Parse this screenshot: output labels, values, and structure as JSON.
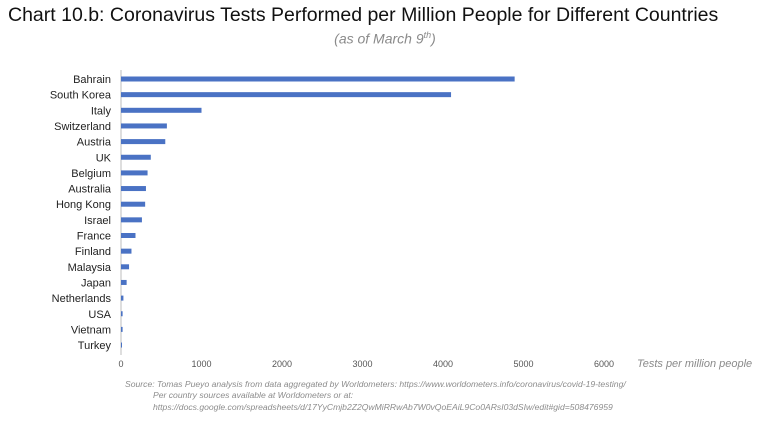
{
  "title": "Chart 10.b: Coronavirus Tests Performed per Million People for Different Countries",
  "subtitle_main": "(as of March 9",
  "subtitle_sup": "th",
  "subtitle_end": ")",
  "source": {
    "line1": "Source: Tomas Pueyo analysis from data aggregated by Worldometers: https://www.worldometers.info/coronavirus/covid-19-testing/",
    "line2": "Per country sources available at Worldometers or at:",
    "line3": "https://docs.google.com/spreadsheets/d/17YyCmjb2Z2QwMiRRwAb7W0vQoEAiL9Co0ARsI03dSIw/edit#gid=508476959"
  },
  "colors": {
    "bar": "#4a72c4",
    "grid": "#e2e2e2",
    "axis": "#bdbdbd"
  },
  "chart_data": {
    "type": "bar",
    "orientation": "horizontal",
    "categories": [
      "Bahrain",
      "South Korea",
      "Italy",
      "Switzerland",
      "Austria",
      "UK",
      "Belgium",
      "Australia",
      "Hong Kong",
      "Israel",
      "France",
      "Finland",
      "Malaysia",
      "Japan",
      "Netherlands",
      "USA",
      "Vietnam",
      "Turkey"
    ],
    "values": [
      4890,
      4100,
      1000,
      570,
      550,
      370,
      330,
      310,
      300,
      260,
      180,
      130,
      100,
      70,
      30,
      20,
      20,
      5
    ],
    "xlabel": "Tests per million people",
    "xlim": [
      0,
      6000
    ],
    "xticks": [
      0,
      1000,
      2000,
      3000,
      4000,
      5000,
      6000
    ],
    "grid": false,
    "legend": "none"
  }
}
